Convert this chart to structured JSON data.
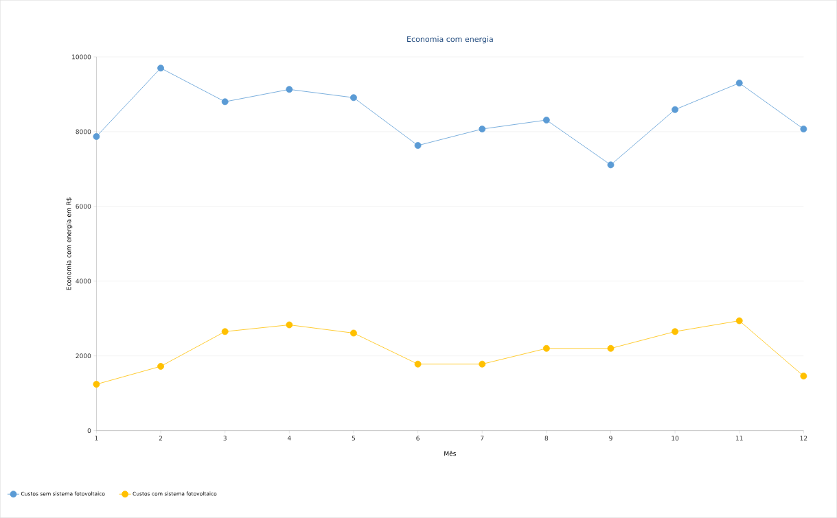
{
  "chart_data": {
    "type": "line",
    "title": "Economia com energia",
    "xlabel": "Mês",
    "ylabel": "Economia com energia em R$",
    "x": [
      1,
      2,
      3,
      4,
      5,
      6,
      7,
      8,
      9,
      10,
      11,
      12
    ],
    "series": [
      {
        "name": "Custos sem sistema fotovoltaico",
        "color": "#5b9bd5",
        "values": [
          7870,
          9700,
          8800,
          9130,
          8910,
          7630,
          8070,
          8310,
          7110,
          8590,
          9300,
          8070
        ]
      },
      {
        "name": "Custos com sistema fotovoltaico",
        "color": "#ffc000",
        "values": [
          1240,
          1720,
          2650,
          2830,
          2610,
          1780,
          1780,
          2200,
          2200,
          2650,
          2940,
          1460
        ]
      }
    ],
    "xlim": [
      1,
      12
    ],
    "xticks": [
      1,
      2,
      3,
      4,
      5,
      6,
      7,
      8,
      9,
      10,
      11,
      12
    ],
    "ylim": [
      0,
      10000
    ],
    "yticks": [
      0,
      2000,
      4000,
      6000,
      8000,
      10000
    ],
    "grid": "y",
    "legend": "bottom left",
    "marker": "circle",
    "line_style": "solid"
  }
}
